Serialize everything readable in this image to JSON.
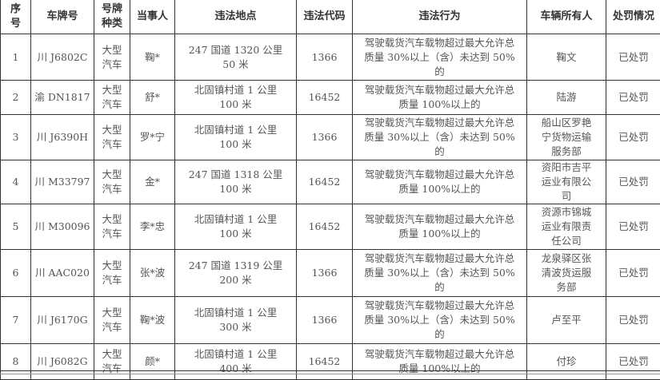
{
  "headers": [
    "序号",
    "车牌号",
    "号牌种类",
    "当事人",
    "违法地点",
    "违法代码",
    "违法行为",
    "车辆所有人",
    "处罚情况"
  ],
  "rows": [
    {
      "no": "1",
      "plate": "川 J6802C",
      "plate_type": "大型汽车",
      "party": "鞠*",
      "location": "247 国道 1320 公里 50 米",
      "code": "1366",
      "behavior": "驾驶载货汽车载物超过最大允许总质量 30%以上（含）未达到 50%的",
      "owner": "鞠文",
      "status": "已处罚"
    },
    {
      "no": "2",
      "plate": "渝 DN1817",
      "plate_type": "大型汽车",
      "party": "舒*",
      "location": "北固镇村道 1 公里 100 米",
      "code": "16452",
      "behavior": "驾驶载货汽车载物超过最大允许总质量 100%以上的",
      "owner": "陆游",
      "status": "已处罚"
    },
    {
      "no": "3",
      "plate": "川 J6390H",
      "plate_type": "大型汽车",
      "party": "罗*宁",
      "location": "北固镇村道 1 公里 100 米",
      "code": "1366",
      "behavior": "驾驶载货汽车载物超过最大允许总质量 30%以上（含）未达到 50%的",
      "owner": "船山区罗艳宁货物运输服务部",
      "status": "已处罚"
    },
    {
      "no": "4",
      "plate": "川 M33797",
      "plate_type": "大型汽车",
      "party": "金*",
      "location": "247 国道 1318 公里 100 米",
      "code": "16452",
      "behavior": "驾驶载货汽车载物超过最大允许总质量 100%以上的",
      "owner": "资阳市吉平运业有限公司",
      "status": "已处罚"
    },
    {
      "no": "5",
      "plate": "川 M30096",
      "plate_type": "大型汽车",
      "party": "李*忠",
      "location": "北固镇村道 1 公里 100 米",
      "code": "16452",
      "behavior": "驾驶载货汽车载物超过最大允许总质量 100%以上的",
      "owner": "资源市锦城运业有限责任公司",
      "status": "已处罚"
    },
    {
      "no": "6",
      "plate": "川 AAC020",
      "plate_type": "大型汽车",
      "party": "张*波",
      "location": "247 国道 1319 公里 200 米",
      "code": "1366",
      "behavior": "驾驶载货汽车载物超过最大允许总质量 30%以上（含）未达到 50%的",
      "owner": "龙泉驿区张清波货运服务部",
      "status": "已处罚"
    },
    {
      "no": "7",
      "plate": "川 J6170G",
      "plate_type": "大型汽车",
      "party": "鞠*波",
      "location": "北固镇村道 1 公里 300 米",
      "code": "1366",
      "behavior": "驾驶载货汽车载物超过最大允许总质量 30%以上（含）未达到 50%的",
      "owner": "卢至平",
      "status": "已处罚"
    },
    {
      "no": "8",
      "plate": "川 J6082G",
      "plate_type": "大型汽车",
      "party": "颜*",
      "location": "北固镇村道 1 公里 400 米",
      "code": "16452",
      "behavior": "驾驶载货汽车载物超过最大允许总质量 100%以上的",
      "owner": "付珍",
      "status": "已处罚"
    }
  ]
}
